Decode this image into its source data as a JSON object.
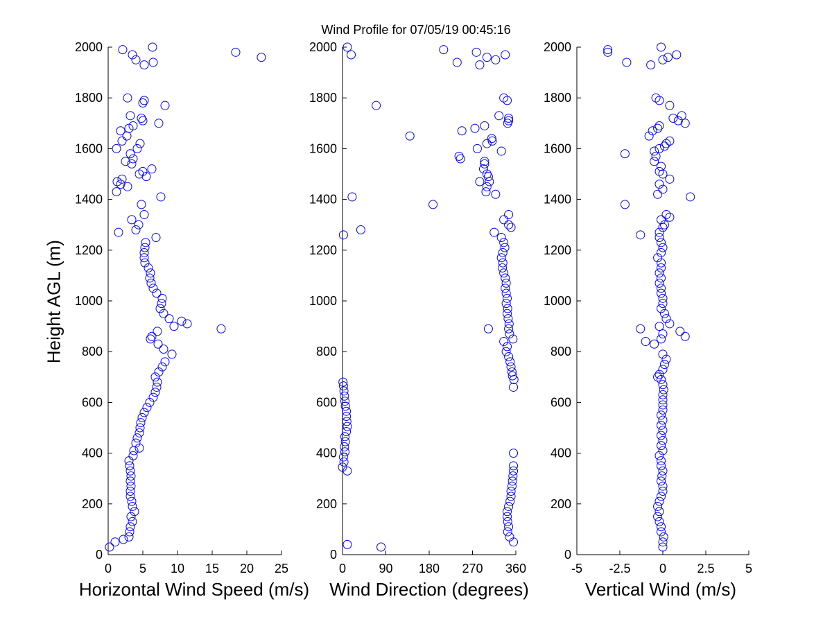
{
  "title": "Wind Profile for  07/05/19 00:45:16",
  "ylabel": "Height AGL (m)",
  "marker_color": "#0000ff",
  "chart_data": [
    {
      "type": "scatter",
      "xlabel": "Horizontal Wind Speed (m/s)",
      "ylabel": "Height AGL (m)",
      "xlim": [
        0,
        25
      ],
      "ylim": [
        0,
        2000
      ],
      "xticks": [
        0,
        5,
        10,
        15,
        20,
        25
      ],
      "xtick_labels": [
        "0",
        "5",
        "10",
        "15",
        "20",
        "25"
      ],
      "yticks": [
        0,
        200,
        400,
        600,
        800,
        1000,
        1200,
        1400,
        1600,
        1800,
        2000
      ],
      "ytick_labels": [
        "0",
        "200",
        "400",
        "600",
        "800",
        "1000",
        "1200",
        "1400",
        "1600",
        "1800",
        "2000"
      ],
      "marker": "circle-open",
      "points": [
        [
          0.2,
          30
        ],
        [
          1.0,
          50
        ],
        [
          2.2,
          60
        ],
        [
          3.0,
          70
        ],
        [
          3.1,
          90
        ],
        [
          3.2,
          110
        ],
        [
          3.5,
          130
        ],
        [
          3.3,
          150
        ],
        [
          3.8,
          170
        ],
        [
          3.5,
          190
        ],
        [
          3.4,
          210
        ],
        [
          3.2,
          230
        ],
        [
          3.2,
          250
        ],
        [
          3.3,
          270
        ],
        [
          3.2,
          290
        ],
        [
          3.3,
          310
        ],
        [
          3.2,
          330
        ],
        [
          3.1,
          350
        ],
        [
          3.0,
          370
        ],
        [
          3.6,
          390
        ],
        [
          3.7,
          410
        ],
        [
          4.5,
          420
        ],
        [
          4.0,
          440
        ],
        [
          4.2,
          460
        ],
        [
          4.5,
          480
        ],
        [
          4.6,
          500
        ],
        [
          4.7,
          520
        ],
        [
          4.9,
          540
        ],
        [
          5.2,
          560
        ],
        [
          5.6,
          580
        ],
        [
          6.0,
          600
        ],
        [
          6.5,
          620
        ],
        [
          6.8,
          640
        ],
        [
          7.0,
          660
        ],
        [
          7.1,
          680
        ],
        [
          6.8,
          700
        ],
        [
          7.3,
          720
        ],
        [
          7.8,
          740
        ],
        [
          8.2,
          760
        ],
        [
          9.2,
          790
        ],
        [
          8.0,
          810
        ],
        [
          7.2,
          830
        ],
        [
          6.1,
          850
        ],
        [
          6.3,
          860
        ],
        [
          7.1,
          880
        ],
        [
          16.3,
          890
        ],
        [
          9.5,
          900
        ],
        [
          11.4,
          910
        ],
        [
          10.6,
          920
        ],
        [
          8.8,
          930
        ],
        [
          8.0,
          950
        ],
        [
          7.5,
          970
        ],
        [
          7.7,
          990
        ],
        [
          7.8,
          1010
        ],
        [
          7.0,
          1030
        ],
        [
          6.5,
          1050
        ],
        [
          6.2,
          1070
        ],
        [
          6.0,
          1090
        ],
        [
          6.1,
          1110
        ],
        [
          5.8,
          1130
        ],
        [
          5.3,
          1150
        ],
        [
          5.2,
          1170
        ],
        [
          5.2,
          1190
        ],
        [
          5.3,
          1210
        ],
        [
          5.4,
          1230
        ],
        [
          6.9,
          1250
        ],
        [
          1.5,
          1270
        ],
        [
          4.0,
          1280
        ],
        [
          4.4,
          1300
        ],
        [
          3.4,
          1320
        ],
        [
          5.2,
          1340
        ],
        [
          4.8,
          1380
        ],
        [
          7.6,
          1410
        ],
        [
          1.2,
          1430
        ],
        [
          2.8,
          1450
        ],
        [
          1.8,
          1460
        ],
        [
          1.3,
          1470
        ],
        [
          2.0,
          1480
        ],
        [
          5.5,
          1490
        ],
        [
          4.5,
          1500
        ],
        [
          5.0,
          1510
        ],
        [
          6.3,
          1520
        ],
        [
          3.4,
          1540
        ],
        [
          2.5,
          1550
        ],
        [
          3.6,
          1560
        ],
        [
          3.2,
          1580
        ],
        [
          4.2,
          1600
        ],
        [
          1.2,
          1600
        ],
        [
          4.6,
          1620
        ],
        [
          2.0,
          1630
        ],
        [
          2.7,
          1650
        ],
        [
          1.8,
          1670
        ],
        [
          3.0,
          1680
        ],
        [
          3.6,
          1690
        ],
        [
          7.3,
          1700
        ],
        [
          5.0,
          1710
        ],
        [
          4.8,
          1720
        ],
        [
          3.2,
          1730
        ],
        [
          8.2,
          1770
        ],
        [
          5.0,
          1780
        ],
        [
          5.2,
          1790
        ],
        [
          2.8,
          1800
        ],
        [
          4.0,
          1950
        ],
        [
          5.2,
          1930
        ],
        [
          6.5,
          1940
        ],
        [
          3.5,
          1970
        ],
        [
          2.1,
          1990
        ],
        [
          6.4,
          2000
        ],
        [
          18.4,
          1980
        ],
        [
          22.1,
          1960
        ]
      ]
    },
    {
      "type": "scatter",
      "xlabel": "Wind Direction (degrees)",
      "ylabel": "Height AGL (m)",
      "xlim": [
        0,
        360
      ],
      "ylim": [
        0,
        2000
      ],
      "xticks": [
        0,
        90,
        180,
        270,
        360
      ],
      "xtick_labels": [
        "0",
        "90",
        "180",
        "270",
        "360"
      ],
      "yticks": [
        0,
        200,
        400,
        600,
        800,
        1000,
        1200,
        1400,
        1600,
        1800,
        2000
      ],
      "ytick_labels": [
        "0",
        "200",
        "400",
        "600",
        "800",
        "1000",
        "1200",
        "1400",
        "1600",
        "1800",
        "2000"
      ],
      "marker": "circle-open",
      "points": [
        [
          80,
          30
        ],
        [
          10,
          40
        ],
        [
          355,
          50
        ],
        [
          347,
          70
        ],
        [
          343,
          90
        ],
        [
          345,
          110
        ],
        [
          343,
          130
        ],
        [
          342,
          150
        ],
        [
          342,
          170
        ],
        [
          345,
          190
        ],
        [
          348,
          210
        ],
        [
          350,
          230
        ],
        [
          350,
          250
        ],
        [
          352,
          270
        ],
        [
          353,
          290
        ],
        [
          354,
          310
        ],
        [
          355,
          330
        ],
        [
          355,
          350
        ],
        [
          355,
          400
        ],
        [
          10,
          330
        ],
        [
          0,
          345
        ],
        [
          3,
          365
        ],
        [
          2,
          385
        ],
        [
          5,
          405
        ],
        [
          4,
          425
        ],
        [
          6,
          445
        ],
        [
          5,
          465
        ],
        [
          8,
          485
        ],
        [
          10,
          505
        ],
        [
          9,
          525
        ],
        [
          8,
          545
        ],
        [
          8,
          565
        ],
        [
          6,
          585
        ],
        [
          5,
          605
        ],
        [
          4,
          625
        ],
        [
          3,
          645
        ],
        [
          2,
          665
        ],
        [
          1,
          680
        ],
        [
          355,
          660
        ],
        [
          356,
          690
        ],
        [
          353,
          705
        ],
        [
          352,
          720
        ],
        [
          350,
          740
        ],
        [
          348,
          760
        ],
        [
          345,
          780
        ],
        [
          340,
          800
        ],
        [
          342,
          820
        ],
        [
          335,
          840
        ],
        [
          354,
          850
        ],
        [
          347,
          870
        ],
        [
          345,
          890
        ],
        [
          303,
          890
        ],
        [
          346,
          910
        ],
        [
          344,
          930
        ],
        [
          342,
          950
        ],
        [
          343,
          970
        ],
        [
          340,
          990
        ],
        [
          342,
          1010
        ],
        [
          340,
          1030
        ],
        [
          338,
          1050
        ],
        [
          340,
          1070
        ],
        [
          338,
          1090
        ],
        [
          335,
          1110
        ],
        [
          332,
          1130
        ],
        [
          333,
          1150
        ],
        [
          330,
          1170
        ],
        [
          333,
          1190
        ],
        [
          337,
          1210
        ],
        [
          335,
          1230
        ],
        [
          330,
          1250
        ],
        [
          315,
          1270
        ],
        [
          38,
          1280
        ],
        [
          350,
          1290
        ],
        [
          345,
          1300
        ],
        [
          335,
          1320
        ],
        [
          345,
          1340
        ],
        [
          20,
          1410
        ],
        [
          188,
          1380
        ],
        [
          2,
          1260
        ],
        [
          318,
          1420
        ],
        [
          298,
          1430
        ],
        [
          300,
          1450
        ],
        [
          285,
          1470
        ],
        [
          305,
          1470
        ],
        [
          303,
          1490
        ],
        [
          300,
          1500
        ],
        [
          293,
          1520
        ],
        [
          295,
          1540
        ],
        [
          295,
          1550
        ],
        [
          245,
          1560
        ],
        [
          242,
          1570
        ],
        [
          330,
          1590
        ],
        [
          280,
          1600
        ],
        [
          300,
          1620
        ],
        [
          310,
          1640
        ],
        [
          311,
          1630
        ],
        [
          140,
          1650
        ],
        [
          248,
          1670
        ],
        [
          275,
          1680
        ],
        [
          295,
          1690
        ],
        [
          343,
          1700
        ],
        [
          345,
          1720
        ],
        [
          345,
          1710
        ],
        [
          325,
          1730
        ],
        [
          70,
          1770
        ],
        [
          342,
          1790
        ],
        [
          335,
          1800
        ],
        [
          210,
          1990
        ],
        [
          238,
          1940
        ],
        [
          285,
          1930
        ],
        [
          300,
          1960
        ],
        [
          318,
          1950
        ],
        [
          278,
          1980
        ],
        [
          338,
          1970
        ],
        [
          18,
          1970
        ],
        [
          10,
          2000
        ]
      ]
    },
    {
      "type": "scatter",
      "xlabel": "Vertical Wind (m/s)",
      "ylabel": "Height AGL (m)",
      "xlim": [
        -5,
        5
      ],
      "ylim": [
        0,
        2000
      ],
      "xticks": [
        -5,
        -2.5,
        0,
        2.5,
        5
      ],
      "xtick_labels": [
        "-5",
        "-2.5",
        "0",
        "2.5",
        "5"
      ],
      "yticks": [
        0,
        200,
        400,
        600,
        800,
        1000,
        1200,
        1400,
        1600,
        1800,
        2000
      ],
      "ytick_labels": [
        "0",
        "200",
        "400",
        "600",
        "800",
        "1000",
        "1200",
        "1400",
        "1600",
        "1800",
        "2000"
      ],
      "marker": "circle-open",
      "points": [
        [
          0.0,
          30
        ],
        [
          0.0,
          50
        ],
        [
          0.05,
          70
        ],
        [
          -0.1,
          90
        ],
        [
          -0.1,
          110
        ],
        [
          -0.2,
          130
        ],
        [
          -0.3,
          150
        ],
        [
          -0.2,
          170
        ],
        [
          -0.3,
          190
        ],
        [
          -0.2,
          210
        ],
        [
          -0.1,
          230
        ],
        [
          0.0,
          250
        ],
        [
          0.0,
          270
        ],
        [
          -0.1,
          290
        ],
        [
          -0.05,
          310
        ],
        [
          0.0,
          330
        ],
        [
          -0.1,
          350
        ],
        [
          -0.1,
          370
        ],
        [
          -0.2,
          390
        ],
        [
          0.0,
          410
        ],
        [
          -0.1,
          430
        ],
        [
          0.0,
          450
        ],
        [
          -0.1,
          470
        ],
        [
          0.0,
          490
        ],
        [
          -0.1,
          510
        ],
        [
          0.0,
          530
        ],
        [
          -0.1,
          550
        ],
        [
          0.0,
          570
        ],
        [
          0.0,
          590
        ],
        [
          0.0,
          610
        ],
        [
          0.0,
          630
        ],
        [
          0.05,
          650
        ],
        [
          0.0,
          670
        ],
        [
          -0.1,
          690
        ],
        [
          -0.3,
          700
        ],
        [
          -0.2,
          710
        ],
        [
          0.0,
          730
        ],
        [
          0.1,
          750
        ],
        [
          0.2,
          770
        ],
        [
          0.0,
          790
        ],
        [
          -0.5,
          830
        ],
        [
          -1.0,
          840
        ],
        [
          -0.1,
          850
        ],
        [
          0.0,
          870
        ],
        [
          -1.3,
          890
        ],
        [
          -0.2,
          900
        ],
        [
          1.0,
          880
        ],
        [
          1.3,
          860
        ],
        [
          0.4,
          910
        ],
        [
          0.2,
          930
        ],
        [
          0.1,
          950
        ],
        [
          -0.1,
          970
        ],
        [
          0.0,
          990
        ],
        [
          0.0,
          1010
        ],
        [
          -0.1,
          1030
        ],
        [
          -0.1,
          1050
        ],
        [
          -0.2,
          1070
        ],
        [
          -0.1,
          1090
        ],
        [
          -0.2,
          1110
        ],
        [
          -0.1,
          1130
        ],
        [
          -0.1,
          1150
        ],
        [
          -0.3,
          1170
        ],
        [
          -0.1,
          1190
        ],
        [
          0.0,
          1210
        ],
        [
          -0.1,
          1230
        ],
        [
          -0.2,
          1250
        ],
        [
          -1.3,
          1260
        ],
        [
          -0.2,
          1270
        ],
        [
          0.0,
          1290
        ],
        [
          0.1,
          1300
        ],
        [
          -0.1,
          1320
        ],
        [
          0.4,
          1330
        ],
        [
          0.2,
          1340
        ],
        [
          -2.2,
          1380
        ],
        [
          1.6,
          1410
        ],
        [
          -0.3,
          1420
        ],
        [
          0.0,
          1440
        ],
        [
          -0.2,
          1460
        ],
        [
          0.4,
          1480
        ],
        [
          0.0,
          1500
        ],
        [
          -0.2,
          1510
        ],
        [
          -0.1,
          1530
        ],
        [
          -0.5,
          1550
        ],
        [
          -0.4,
          1570
        ],
        [
          -2.2,
          1580
        ],
        [
          -0.5,
          1590
        ],
        [
          -0.2,
          1600
        ],
        [
          0.1,
          1610
        ],
        [
          0.2,
          1620
        ],
        [
          0.4,
          1630
        ],
        [
          -0.8,
          1650
        ],
        [
          -0.6,
          1670
        ],
        [
          -0.3,
          1680
        ],
        [
          -0.2,
          1690
        ],
        [
          0.9,
          1710
        ],
        [
          1.3,
          1700
        ],
        [
          0.6,
          1720
        ],
        [
          1.1,
          1730
        ],
        [
          0.4,
          1770
        ],
        [
          -0.2,
          1790
        ],
        [
          -0.4,
          1800
        ],
        [
          -3.2,
          1980
        ],
        [
          -3.2,
          1990
        ],
        [
          -2.1,
          1940
        ],
        [
          -0.7,
          1930
        ],
        [
          0.0,
          1950
        ],
        [
          0.3,
          1960
        ],
        [
          0.8,
          1970
        ],
        [
          -0.1,
          2000
        ]
      ]
    }
  ]
}
